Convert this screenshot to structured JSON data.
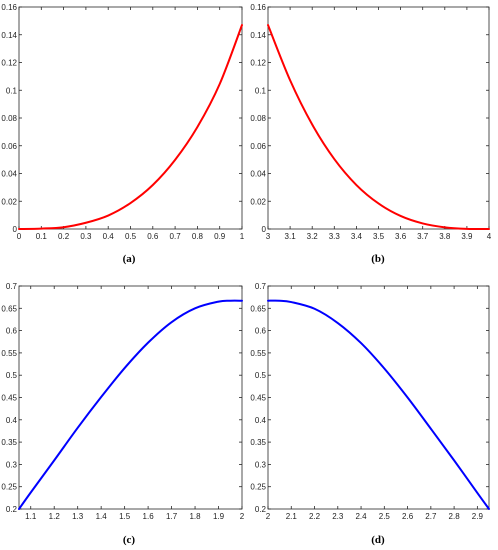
{
  "figure": {
    "panels": [
      {
        "caption": "(a)"
      },
      {
        "caption": "(b)"
      },
      {
        "caption": "(c)"
      },
      {
        "caption": "(d)"
      }
    ]
  },
  "colors": {
    "red_series": "#ff0000",
    "blue_series": "#0000ff",
    "axes": "#262626"
  },
  "chart_data": [
    {
      "type": "line",
      "title": "",
      "xlabel": "",
      "ylabel": "",
      "grid": false,
      "xlim": [
        0,
        1
      ],
      "ylim": [
        0,
        0.16
      ],
      "xticks": [
        0,
        0.1,
        0.2,
        0.3,
        0.4,
        0.5,
        0.6,
        0.7,
        0.8,
        0.9,
        1
      ],
      "xtick_labels": [
        "0",
        "0.1",
        "0.2",
        "0.3",
        "0.4",
        "0.5",
        "0.6",
        "0.7",
        "0.8",
        "0.9",
        "1"
      ],
      "yticks": [
        0,
        0.02,
        0.04,
        0.06,
        0.08,
        0.1,
        0.12,
        0.14,
        0.16
      ],
      "ytick_labels": [
        "0",
        "0.02",
        "0.04",
        "0.06",
        "0.08",
        "0.1",
        "0.12",
        "0.14",
        "0.16"
      ],
      "series": [
        {
          "color": "#ff0000",
          "x": [
            0,
            0.1,
            0.2,
            0.3,
            0.4,
            0.5,
            0.6,
            0.7,
            0.8,
            0.9,
            1
          ],
          "y": [
            0,
            0.0003,
            0.0013,
            0.0045,
            0.0097,
            0.0187,
            0.0317,
            0.0498,
            0.0735,
            0.1045,
            0.147
          ]
        }
      ]
    },
    {
      "type": "line",
      "title": "",
      "xlabel": "",
      "ylabel": "",
      "grid": false,
      "xlim": [
        3,
        4
      ],
      "ylim": [
        0,
        0.16
      ],
      "xticks": [
        3,
        3.1,
        3.2,
        3.3,
        3.4,
        3.5,
        3.6,
        3.7,
        3.8,
        3.9,
        4
      ],
      "xtick_labels": [
        "3",
        "3.1",
        "3.2",
        "3.3",
        "3.4",
        "3.5",
        "3.6",
        "3.7",
        "3.8",
        "3.9",
        "4"
      ],
      "yticks": [
        0,
        0.02,
        0.04,
        0.06,
        0.08,
        0.1,
        0.12,
        0.14,
        0.16
      ],
      "ytick_labels": [
        "0",
        "0.02",
        "0.04",
        "0.06",
        "0.08",
        "0.1",
        "0.12",
        "0.14",
        "0.16"
      ],
      "series": [
        {
          "color": "#ff0000",
          "x": [
            3,
            3.1,
            3.2,
            3.3,
            3.4,
            3.5,
            3.6,
            3.7,
            3.8,
            3.9,
            4
          ],
          "y": [
            0.147,
            0.1072,
            0.0753,
            0.0504,
            0.0317,
            0.0184,
            0.0094,
            0.004,
            0.0012,
            0.0001,
            0
          ]
        }
      ]
    },
    {
      "type": "line",
      "title": "",
      "xlabel": "",
      "ylabel": "",
      "grid": false,
      "xlim": [
        1.05,
        2
      ],
      "ylim": [
        0.2,
        0.7
      ],
      "xticks": [
        1.1,
        1.2,
        1.3,
        1.4,
        1.5,
        1.6,
        1.7,
        1.8,
        1.9,
        2
      ],
      "xtick_labels": [
        "1.1",
        "1.2",
        "1.3",
        "1.4",
        "1.5",
        "1.6",
        "1.7",
        "1.8",
        "1.9",
        "2"
      ],
      "yticks": [
        0.2,
        0.25,
        0.3,
        0.35,
        0.4,
        0.45,
        0.5,
        0.55,
        0.6,
        0.65,
        0.7
      ],
      "ytick_labels": [
        "0.2",
        "0.25",
        "0.3",
        "0.35",
        "0.4",
        "0.45",
        "0.5",
        "0.55",
        "0.6",
        "0.65",
        "0.7"
      ],
      "series": [
        {
          "color": "#0000ff",
          "x": [
            1.05,
            1.1,
            1.2,
            1.3,
            1.4,
            1.5,
            1.6,
            1.7,
            1.8,
            1.9,
            1.95,
            2
          ],
          "y": [
            0.2,
            0.237,
            0.309,
            0.382,
            0.451,
            0.516,
            0.573,
            0.619,
            0.65,
            0.665,
            0.667,
            0.667
          ]
        }
      ]
    },
    {
      "type": "line",
      "title": "",
      "xlabel": "",
      "ylabel": "",
      "grid": false,
      "xlim": [
        2,
        2.95
      ],
      "ylim": [
        0.2,
        0.7
      ],
      "xticks": [
        2,
        2.1,
        2.2,
        2.3,
        2.4,
        2.5,
        2.6,
        2.7,
        2.8,
        2.9
      ],
      "xtick_labels": [
        "2",
        "2.1",
        "2.2",
        "2.3",
        "2.4",
        "2.5",
        "2.6",
        "2.7",
        "2.8",
        "2.9"
      ],
      "yticks": [
        0.2,
        0.25,
        0.3,
        0.35,
        0.4,
        0.45,
        0.5,
        0.55,
        0.6,
        0.65,
        0.7
      ],
      "ytick_labels": [
        "0.2",
        "0.25",
        "0.3",
        "0.35",
        "0.4",
        "0.45",
        "0.5",
        "0.55",
        "0.6",
        "0.65",
        "0.7"
      ],
      "series": [
        {
          "color": "#0000ff",
          "x": [
            2,
            2.05,
            2.1,
            2.2,
            2.3,
            2.4,
            2.5,
            2.6,
            2.7,
            2.8,
            2.9,
            2.95
          ],
          "y": [
            0.667,
            0.667,
            0.664,
            0.649,
            0.617,
            0.572,
            0.515,
            0.45,
            0.38,
            0.309,
            0.236,
            0.2
          ]
        }
      ]
    }
  ]
}
